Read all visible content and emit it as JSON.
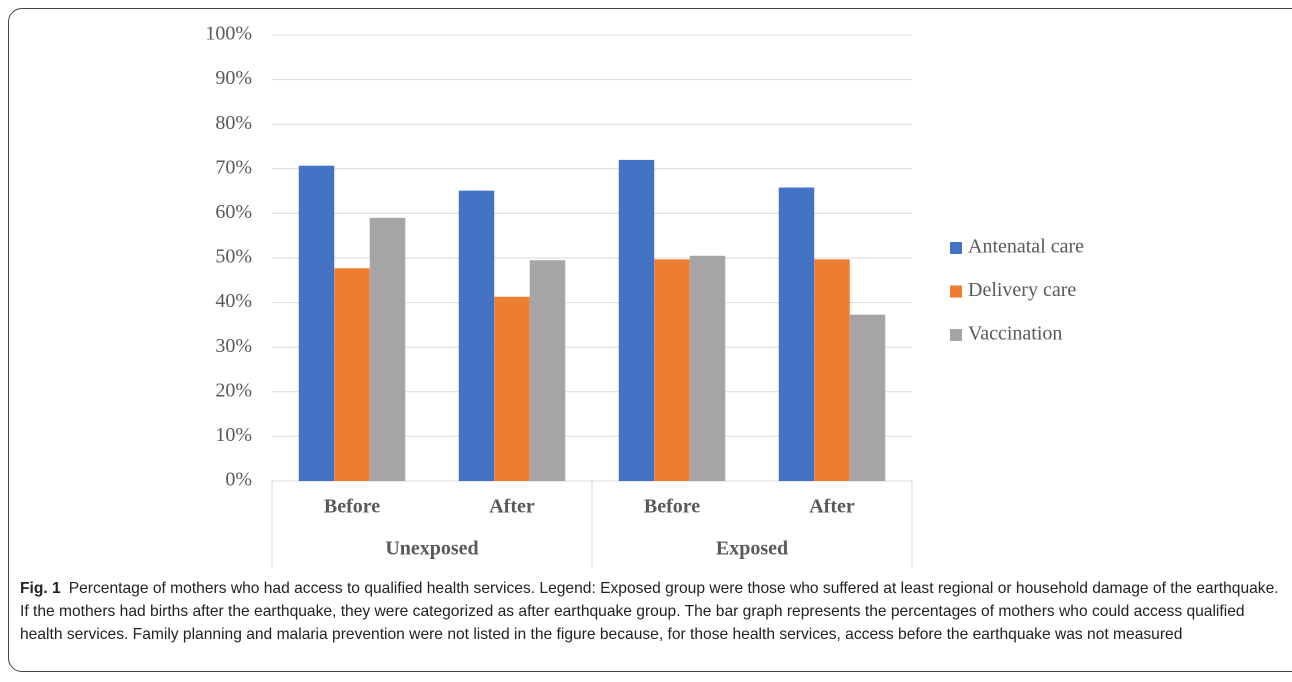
{
  "chart_data": {
    "type": "bar",
    "categories": [
      "Before",
      "After",
      "Before",
      "After"
    ],
    "category_groups": [
      "Unexposed",
      "Exposed"
    ],
    "series": [
      {
        "name": "Antenatal care",
        "color": "#4472c4",
        "values": [
          70.7,
          65.1,
          72.0,
          65.8
        ]
      },
      {
        "name": "Delivery care",
        "color": "#ed7d31",
        "values": [
          47.7,
          41.3,
          49.7,
          49.7
        ]
      },
      {
        "name": "Vaccination",
        "color": "#a5a5a5",
        "values": [
          59.0,
          49.5,
          50.5,
          37.3
        ]
      }
    ],
    "ylim": [
      0,
      100
    ],
    "yticks": [
      {
        "value": 0,
        "label": "0%"
      },
      {
        "value": 10,
        "label": "10%"
      },
      {
        "value": 20,
        "label": "20%"
      },
      {
        "value": 30,
        "label": "30%"
      },
      {
        "value": 40,
        "label": "40%"
      },
      {
        "value": 50,
        "label": "50%"
      },
      {
        "value": 60,
        "label": "60%"
      },
      {
        "value": 70,
        "label": "70%"
      },
      {
        "value": 80,
        "label": "80%"
      },
      {
        "value": 90,
        "label": "90%"
      },
      {
        "value": 100,
        "label": "100%"
      }
    ],
    "grid": true,
    "legend": "right"
  },
  "caption": {
    "label": "Fig. 1",
    "text": "Percentage of mothers who had access to qualified health services. Legend: Exposed group were those who suffered at least regional or household damage of the earthquake. If the mothers had births after the earthquake, they were categorized as after earthquake group. The bar graph represents the percentages of mothers who could access qualified health services. Family planning and malaria prevention were not listed in the figure because, for those health services, access before the earthquake was not measured"
  }
}
